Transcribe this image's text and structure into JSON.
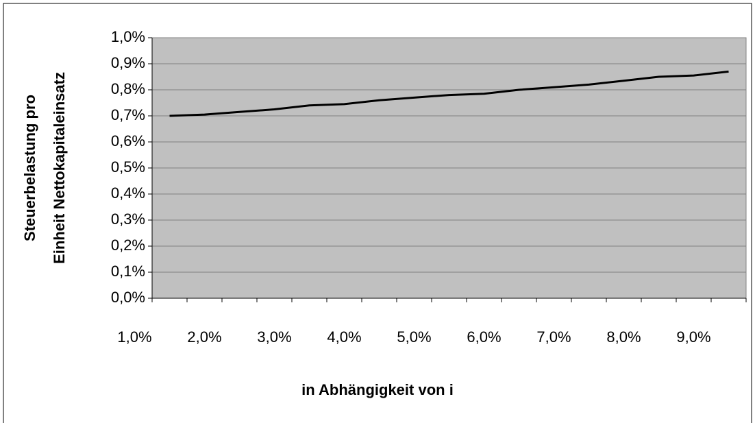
{
  "chart_data": {
    "type": "line",
    "x_label": "in Abhängigkeit von i",
    "y_label": [
      "Steuerbelastung pro",
      "Einheit Nettokapitaleinsatz"
    ],
    "categories": [
      "1,0%",
      null,
      "2,0%",
      null,
      "3,0%",
      null,
      "4,0%",
      null,
      "5,0%",
      null,
      "6,0%",
      null,
      "7,0%",
      null,
      "8,0%",
      null,
      "9,0%"
    ],
    "series": [
      {
        "color": "#000000",
        "values": [
          0.7,
          0.705,
          0.715,
          0.725,
          0.74,
          0.745,
          0.76,
          0.77,
          0.78,
          0.785,
          0.8,
          0.81,
          0.82,
          0.835,
          0.85,
          0.855,
          0.87
        ]
      }
    ],
    "ylim": [
      0,
      1.0
    ],
    "yticks": [
      {
        "value": 0,
        "label": "0,0%"
      },
      {
        "value": 0.1,
        "label": "0,1%"
      },
      {
        "value": 0.2,
        "label": "0,2%"
      },
      {
        "value": 0.3,
        "label": "0,3%"
      },
      {
        "value": 0.4,
        "label": "0,4%"
      },
      {
        "value": 0.5,
        "label": "0,5%"
      },
      {
        "value": 0.6,
        "label": "0,6%"
      },
      {
        "value": 0.7,
        "label": "0,7%"
      },
      {
        "value": 0.8,
        "label": "0,8%"
      },
      {
        "value": 0.9,
        "label": "0,9%"
      },
      {
        "value": 1.0,
        "label": "1,0%"
      }
    ],
    "grid": true,
    "plot_background": "#c0c0c0"
  }
}
